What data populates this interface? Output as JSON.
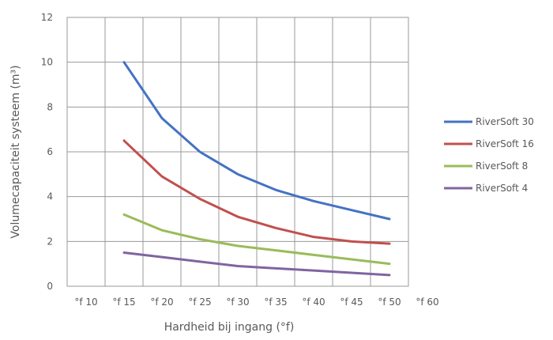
{
  "chart_data": {
    "type": "line",
    "title": "",
    "xlabel": "Hardheid bij ingang (°f)",
    "ylabel": "Volumecapaciteit systeem (m³)",
    "x_ticks": [
      10,
      15,
      20,
      25,
      30,
      35,
      40,
      45,
      50,
      60
    ],
    "x_tick_labels": [
      "°f 10",
      "°f 15",
      "°f 20",
      "°f 25",
      "°f 30",
      "°f 35",
      "°f 40",
      "°f 45",
      "°f 50",
      "°f 60"
    ],
    "y_ticks": [
      0,
      2,
      4,
      6,
      8,
      10,
      12
    ],
    "xlim": [
      10,
      60
    ],
    "ylim": [
      0,
      12
    ],
    "grid": true,
    "legend_position": "right",
    "x": [
      15,
      20,
      25,
      30,
      35,
      40,
      45,
      50
    ],
    "series": [
      {
        "name": "RiverSoft 30",
        "color": "#4472c4",
        "values": [
          10.0,
          7.5,
          6.0,
          5.0,
          4.3,
          3.8,
          3.4,
          3.0
        ]
      },
      {
        "name": "RiverSoft 16",
        "color": "#c0504d",
        "values": [
          6.5,
          4.9,
          3.9,
          3.1,
          2.6,
          2.2,
          2.0,
          1.9
        ]
      },
      {
        "name": "RiverSoft 8",
        "color": "#9bbb59",
        "values": [
          3.2,
          2.5,
          2.1,
          1.8,
          1.6,
          1.4,
          1.2,
          1.0
        ]
      },
      {
        "name": "RiverSoft 4",
        "color": "#8064a2",
        "values": [
          1.5,
          1.3,
          1.1,
          0.9,
          0.8,
          0.7,
          0.6,
          0.5
        ]
      }
    ]
  }
}
